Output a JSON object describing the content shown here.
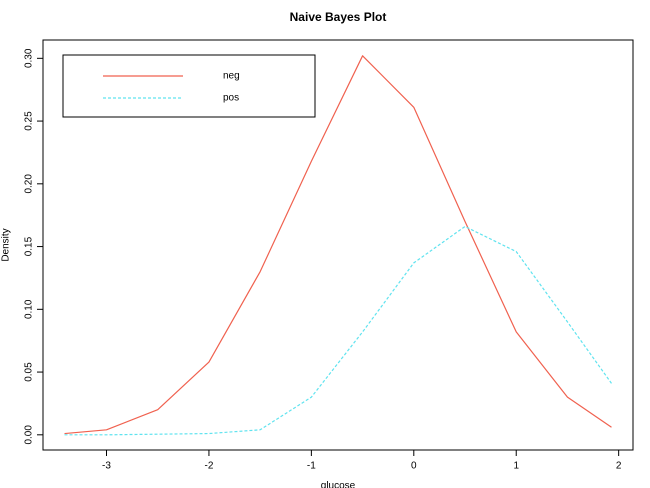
{
  "chart_data": {
    "type": "line",
    "title": "Naive Bayes Plot",
    "x_label": "glucose",
    "y_label": "Density",
    "x": [
      -3.41,
      -3.0,
      -2.5,
      -2.0,
      -1.5,
      -1.0,
      -0.5,
      0.0,
      0.5,
      1.0,
      1.5,
      1.93
    ],
    "series": [
      {
        "name": "neg",
        "color": "#f0614f",
        "dash": false,
        "values": [
          0.001,
          0.004,
          0.02,
          0.058,
          0.13,
          0.218,
          0.302,
          0.261,
          0.17,
          0.082,
          0.03,
          0.006
        ]
      },
      {
        "name": "pos",
        "color": "#5fe3ef",
        "dash": true,
        "values": [
          0.0,
          0.0,
          0.0005,
          0.001,
          0.004,
          0.03,
          0.082,
          0.137,
          0.166,
          0.146,
          0.09,
          0.041
        ]
      }
    ],
    "xlim": [
      -3.62,
      2.14
    ],
    "ylim": [
      -0.0121,
      0.3146
    ],
    "xticks": [
      -3,
      -2,
      -1,
      0,
      1,
      2
    ],
    "yticks": [
      {
        "value": 0,
        "label": "0.00"
      },
      0.05,
      {
        "value": 0.1,
        "label": "0.10"
      },
      0.15,
      {
        "value": 0.2,
        "label": "0.20"
      },
      0.25,
      {
        "value": 0.3,
        "label": "0.30"
      }
    ],
    "legend": "top-left"
  }
}
